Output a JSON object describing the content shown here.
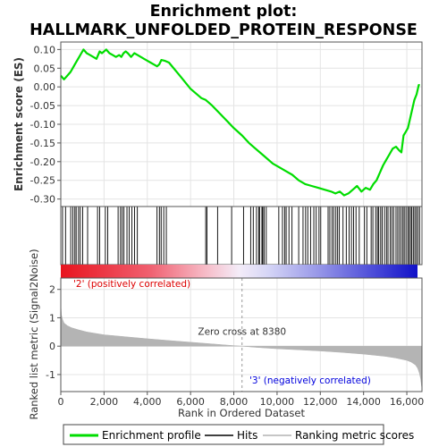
{
  "title_line1": "Enrichment plot:",
  "title_line2": "HALLMARK_UNFOLDED_PROTEIN_RESPONSE",
  "colors": {
    "es_line": "#00dd00",
    "hits": "#000000",
    "metric_fill": "#b4b4b4",
    "pos_label": "#dd0000",
    "neg_label": "#0000dd",
    "zero_cross_line": "#999999"
  },
  "chart_data": [
    {
      "type": "line",
      "name": "enrichment-score-panel",
      "ylabel": "Enrichment score (ES)",
      "xlim": [
        0,
        16700
      ],
      "ylim": [
        -0.32,
        0.12
      ],
      "yticks": [
        0.1,
        0.05,
        0.0,
        -0.05,
        -0.1,
        -0.15,
        -0.2,
        -0.25,
        -0.3
      ],
      "ytick_labels": [
        "0.10",
        "0.05",
        "0.00",
        "-0.05",
        "-0.10",
        "-0.15",
        "-0.20",
        "-0.25",
        "-0.30"
      ],
      "grid": true,
      "series": [
        {
          "name": "Enrichment profile",
          "x": [
            0,
            150,
            300,
            450,
            550,
            650,
            750,
            850,
            950,
            1050,
            1200,
            1350,
            1500,
            1650,
            1800,
            1900,
            2000,
            2100,
            2250,
            2400,
            2550,
            2700,
            2800,
            2900,
            3000,
            3100,
            3250,
            3400,
            3550,
            3700,
            3850,
            4000,
            4150,
            4300,
            4450,
            4550,
            4650,
            4800,
            5000,
            5500,
            6000,
            6500,
            6700,
            7000,
            7500,
            8000,
            8380,
            8700,
            9000,
            9400,
            9800,
            10100,
            10400,
            10700,
            11000,
            11300,
            11600,
            11900,
            12200,
            12500,
            12700,
            12900,
            13100,
            13300,
            13500,
            13700,
            13900,
            14100,
            14300,
            14450,
            14600,
            14750,
            14900,
            15050,
            15200,
            15350,
            15500,
            15650,
            15750,
            15850,
            15950,
            16050,
            16150,
            16250,
            16350,
            16450,
            16550,
            16600
          ],
          "y": [
            0.03,
            0.02,
            0.03,
            0.04,
            0.05,
            0.06,
            0.07,
            0.08,
            0.09,
            0.1,
            0.09,
            0.085,
            0.08,
            0.075,
            0.095,
            0.09,
            0.095,
            0.1,
            0.09,
            0.085,
            0.08,
            0.085,
            0.08,
            0.09,
            0.095,
            0.09,
            0.08,
            0.09,
            0.085,
            0.08,
            0.075,
            0.07,
            0.065,
            0.06,
            0.055,
            0.06,
            0.072,
            0.07,
            0.065,
            0.03,
            -0.005,
            -0.03,
            -0.035,
            -0.05,
            -0.08,
            -0.11,
            -0.13,
            -0.15,
            -0.165,
            -0.185,
            -0.205,
            -0.215,
            -0.225,
            -0.235,
            -0.25,
            -0.26,
            -0.265,
            -0.27,
            -0.275,
            -0.28,
            -0.285,
            -0.28,
            -0.29,
            -0.285,
            -0.275,
            -0.265,
            -0.28,
            -0.27,
            -0.275,
            -0.26,
            -0.25,
            -0.23,
            -0.21,
            -0.195,
            -0.18,
            -0.165,
            -0.16,
            -0.17,
            -0.175,
            -0.13,
            -0.12,
            -0.11,
            -0.085,
            -0.06,
            -0.035,
            -0.02,
            0.005,
            0.005
          ]
        }
      ]
    },
    {
      "type": "hits",
      "name": "hits-panel",
      "xlim": [
        0,
        16700
      ],
      "hit_positions": [
        80,
        220,
        460,
        560,
        650,
        710,
        820,
        900,
        1010,
        1240,
        1700,
        1800,
        2060,
        2170,
        2650,
        2760,
        2840,
        2920,
        3060,
        3160,
        3290,
        3410,
        3540,
        4450,
        4560,
        4640,
        4760,
        4880,
        6700,
        6760,
        7250,
        7900,
        8450,
        8780,
        8900,
        9050,
        9150,
        9190,
        9300,
        9340,
        9400,
        9500,
        10080,
        10250,
        10350,
        10420,
        10550,
        10690,
        11000,
        11200,
        11320,
        11420,
        11550,
        11700,
        11810,
        11940,
        12020,
        12360,
        12440,
        12540,
        12620,
        12720,
        12800,
        12880,
        13050,
        13200,
        13330,
        13440,
        13540,
        13650,
        13800,
        14040,
        14150,
        14350,
        14430,
        14560,
        14640,
        14700,
        14790,
        14860,
        14970,
        15060,
        15130,
        15230,
        15310,
        15390,
        15500,
        15580,
        15660,
        15740,
        15820,
        15880,
        15960,
        16040,
        16100,
        16170,
        16230,
        16300,
        16370,
        16440,
        16510,
        16590
      ]
    },
    {
      "type": "area",
      "name": "ranked-list-metric-panel",
      "xlabel": "Rank in Ordered Dataset",
      "ylabel": "Ranked list metric (Signal2Noise)",
      "xlim": [
        0,
        16700
      ],
      "ylim": [
        -1.6,
        2.4
      ],
      "xticks": [
        0,
        2000,
        4000,
        6000,
        8000,
        10000,
        12000,
        14000,
        16000
      ],
      "xtick_labels": [
        "0",
        "2,000",
        "4,000",
        "6,000",
        "8,000",
        "10,000",
        "12,000",
        "14,000",
        "16,000"
      ],
      "yticks": [
        2,
        1,
        0,
        -1
      ],
      "ytick_labels": [
        "2",
        "1",
        "0",
        "-1"
      ],
      "zero_cross": 8380,
      "x": [
        0,
        30,
        80,
        150,
        300,
        500,
        800,
        1200,
        2000,
        3000,
        4000,
        5000,
        6000,
        7000,
        8000,
        8380,
        9000,
        10000,
        11000,
        12000,
        13000,
        14000,
        15000,
        15500,
        16000,
        16200,
        16400,
        16500,
        16580,
        16640,
        16680,
        16700
      ],
      "values": [
        1.5,
        1.1,
        0.95,
        0.82,
        0.72,
        0.65,
        0.58,
        0.5,
        0.4,
        0.33,
        0.26,
        0.2,
        0.14,
        0.08,
        0.02,
        0.0,
        -0.04,
        -0.09,
        -0.13,
        -0.17,
        -0.22,
        -0.28,
        -0.36,
        -0.42,
        -0.5,
        -0.56,
        -0.66,
        -0.78,
        -0.95,
        -1.15,
        -1.4,
        -1.5
      ],
      "annotations": {
        "pos_label": "'2' (positively correlated)",
        "neg_label": "'3' (negatively correlated)",
        "zero_cross_label": "Zero cross at 8380"
      }
    }
  ],
  "legend": {
    "items": [
      {
        "label": "Enrichment profile"
      },
      {
        "label": "Hits"
      },
      {
        "label": "Ranking metric scores"
      }
    ]
  }
}
